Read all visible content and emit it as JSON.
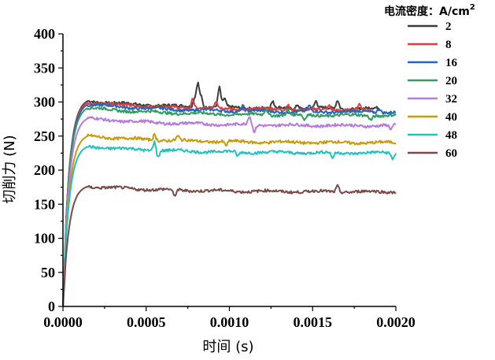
{
  "chart_data": {
    "type": "line",
    "xlabel": "时间 (s)",
    "ylabel": "切削力 (N)",
    "xlim": [
      0,
      0.002
    ],
    "ylim": [
      0,
      400
    ],
    "xticks": [
      "0.0000",
      "0.0005",
      "0.0010",
      "0.0015",
      "0.0020"
    ],
    "yticks": [
      "0",
      "50",
      "100",
      "150",
      "200",
      "250",
      "300",
      "350",
      "400"
    ],
    "legend_title": "电流密度：A/cm",
    "legend_title_sup": "2",
    "legend_position": "top-right",
    "grid": false,
    "series": [
      {
        "name": "2",
        "color": "#3d3d3d",
        "final": 290,
        "end_x": 0.0019,
        "spikes": [
          [
            8e-05,
            0
          ],
          [
            0.00079,
            12
          ],
          [
            0.00081,
            35
          ],
          [
            0.00083,
            15
          ],
          [
            0.00094,
            28
          ],
          [
            0.00097,
            12
          ],
          [
            0.00126,
            8
          ],
          [
            0.00141,
            6
          ],
          [
            0.00152,
            10
          ],
          [
            0.00165,
            12
          ]
        ]
      },
      {
        "name": "8",
        "color": "#e0403b",
        "final": 288,
        "end_x": 0.00185,
        "spikes": [
          [
            0.00078,
            14
          ],
          [
            0.00092,
            10
          ],
          [
            0.00135,
            8
          ],
          [
            0.0016,
            6
          ],
          [
            0.00178,
            8
          ]
        ]
      },
      {
        "name": "16",
        "color": "#2564bf",
        "final": 285,
        "end_x": 0.002,
        "spikes": [
          [
            0.00108,
            8
          ],
          [
            0.00148,
            8
          ],
          [
            0.0019,
            6
          ]
        ]
      },
      {
        "name": "20",
        "color": "#2f9e5e",
        "final": 280,
        "end_x": 0.002,
        "spikes": [
          [
            0.00122,
            10
          ],
          [
            0.00135,
            8
          ],
          [
            0.00145,
            -8
          ],
          [
            0.00185,
            -6
          ]
        ]
      },
      {
        "name": "32",
        "color": "#b67ae0",
        "final": 265,
        "end_x": 0.002,
        "spikes": [
          [
            0.00112,
            12
          ],
          [
            0.00115,
            -10
          ],
          [
            0.00197,
            -6
          ]
        ]
      },
      {
        "name": "40",
        "color": "#c99a0c",
        "final": 240,
        "end_x": 0.002,
        "spikes": [
          [
            0.00055,
            8
          ],
          [
            0.00069,
            6
          ],
          [
            0.00098,
            -6
          ]
        ]
      },
      {
        "name": "48",
        "color": "#21c2c2",
        "final": 225,
        "end_x": 0.002,
        "spikes": [
          [
            0.00055,
            14
          ],
          [
            0.00057,
            -10
          ],
          [
            0.00105,
            -6
          ],
          [
            0.00162,
            -8
          ],
          [
            0.00198,
            -8
          ]
        ]
      },
      {
        "name": "60",
        "color": "#7b4a46",
        "final": 168,
        "end_x": 0.002,
        "spikes": [
          [
            0.00067,
            -10
          ],
          [
            0.00165,
            9
          ]
        ]
      }
    ]
  }
}
